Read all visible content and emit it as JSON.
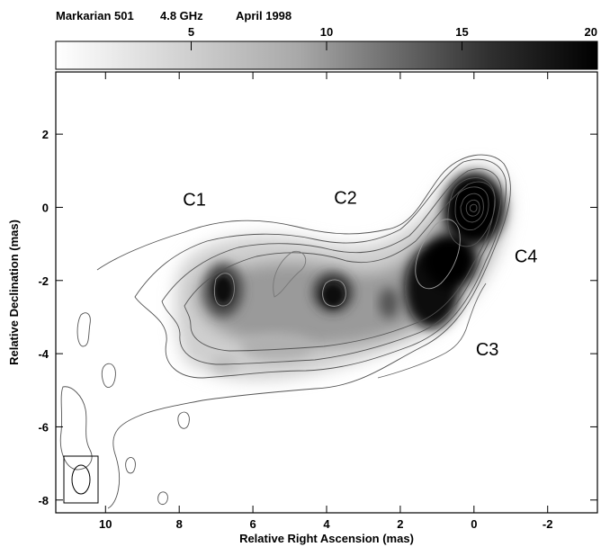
{
  "header": {
    "source": "Markarian 501",
    "frequency": "4.8 GHz",
    "epoch": "April 1998"
  },
  "colorbar": {
    "ticks": [
      5,
      10,
      15,
      20
    ],
    "range": [
      0,
      20
    ]
  },
  "axes": {
    "xlabel": "Relative Right Ascension (mas)",
    "ylabel": "Relative Declination (mas)",
    "xticks": [
      10,
      8,
      6,
      4,
      2,
      0,
      -2
    ],
    "yticks": [
      2,
      0,
      -2,
      -4,
      -6,
      -8
    ],
    "xlim": [
      11.35,
      -3.35
    ],
    "ylim": [
      -8.35,
      3.7
    ]
  },
  "components": [
    {
      "label": "C1",
      "x": 7.9,
      "y": 0.05
    },
    {
      "label": "C2",
      "x": 3.8,
      "y": 0.1
    },
    {
      "label": "C3",
      "x": -0.05,
      "y": -4.05
    },
    {
      "label": "C4",
      "x": -1.1,
      "y": -1.5
    }
  ],
  "chart_data": {
    "type": "heatmap",
    "title": "",
    "xlabel": "Relative Right Ascension (mas)",
    "ylabel": "Relative Declination (mas)",
    "xlim": [
      11.35,
      -3.35
    ],
    "ylim": [
      -8.35,
      3.7
    ],
    "color_scale": {
      "min": 0,
      "max": 20,
      "ticks": [
        5,
        10,
        15,
        20
      ],
      "colormap": "grayscale (white to black)"
    },
    "grid": false,
    "contours": true,
    "emission_peaks": [
      {
        "x": 0.0,
        "y": 0.0,
        "value": 20
      },
      {
        "x": 1.0,
        "y": -1.8,
        "value": 17
      },
      {
        "x": 1.3,
        "y": -2.8,
        "value": 16
      },
      {
        "x": 2.4,
        "y": -2.6,
        "value": 9
      },
      {
        "x": 3.9,
        "y": -2.4,
        "value": 13
      },
      {
        "x": 7.0,
        "y": -2.3,
        "value": 12
      },
      {
        "x": 5.0,
        "y": -3.6,
        "value": 5
      },
      {
        "x": 8.0,
        "y": -3.0,
        "value": 4
      }
    ],
    "annotations": [
      "C1",
      "C2",
      "C3",
      "C4"
    ],
    "beam_box": {
      "x": 10.9,
      "y": -7.55
    }
  }
}
